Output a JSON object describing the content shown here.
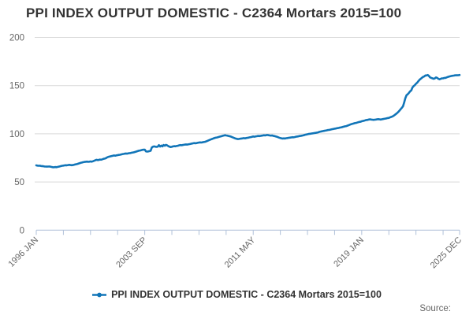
{
  "title": "PPI INDEX OUTPUT DOMESTIC - C2364 Mortars 2015=100",
  "source_label": "Source:",
  "legend": {
    "label": "PPI INDEX OUTPUT DOMESTIC - C2364 Mortars 2015=100",
    "marker_icon": "line-with-dot-icon"
  },
  "colors": {
    "line": "#1175b8",
    "grid": "#d9d9d9",
    "axis": "#b0c1d9",
    "tick_text": "#666666",
    "title_text": "#333333"
  },
  "chart_data": {
    "type": "line",
    "title": "PPI INDEX OUTPUT DOMESTIC - C2364 Mortars 2015=100",
    "xlabel": "",
    "ylabel": "",
    "x_start": "1996-01",
    "x_freq": "monthly",
    "ylim": [
      0,
      200
    ],
    "y_ticks": [
      0,
      50,
      100,
      150,
      200
    ],
    "y_tick_labels": [
      "0",
      "50",
      "100",
      "150",
      "200"
    ],
    "x_tick_months": [
      0,
      23,
      46,
      69,
      92,
      115,
      138,
      161,
      184,
      207,
      230,
      253,
      276,
      299,
      322,
      345,
      359
    ],
    "x_label_months": [
      0,
      92,
      184,
      276,
      359
    ],
    "x_tick_labels": [
      "1996 JAN",
      "2003 SEP",
      "2011 MAY",
      "2019 JAN",
      "2025 DEC"
    ],
    "grid": "horizontal",
    "legend_position": "bottom",
    "series": [
      {
        "name": "PPI INDEX OUTPUT DOMESTIC - C2364 Mortars 2015=100",
        "values": [
          67.2,
          67.0,
          66.8,
          66.9,
          66.6,
          66.5,
          66.3,
          66.1,
          66.0,
          65.9,
          66.0,
          66.1,
          65.9,
          65.6,
          65.4,
          65.3,
          65.5,
          65.4,
          65.6,
          65.9,
          66.2,
          66.5,
          66.8,
          67.0,
          67.2,
          67.4,
          67.3,
          67.6,
          67.8,
          67.6,
          67.4,
          67.6,
          67.9,
          68.2,
          68.5,
          68.8,
          69.2,
          69.6,
          70.0,
          70.3,
          70.6,
          70.8,
          71.0,
          71.2,
          70.9,
          71.1,
          71.3,
          71.1,
          71.5,
          72.0,
          72.5,
          73.0,
          72.7,
          72.9,
          73.3,
          73.1,
          73.5,
          74.0,
          74.3,
          74.7,
          75.5,
          76.0,
          76.3,
          76.6,
          77.0,
          77.2,
          77.5,
          77.3,
          77.6,
          77.9,
          78.1,
          78.3,
          78.6,
          78.9,
          79.1,
          79.4,
          79.6,
          79.4,
          79.7,
          79.9,
          80.1,
          80.4,
          80.6,
          80.9,
          81.2,
          81.6,
          82.0,
          82.4,
          82.7,
          83.0,
          83.3,
          83.5,
          83.6,
          81.8,
          81.5,
          81.7,
          82.0,
          82.4,
          85.9,
          86.6,
          86.9,
          86.6,
          86.4,
          86.7,
          88.2,
          86.8,
          87.8,
          86.9,
          88.4,
          87.6,
          88.6,
          88.0,
          87.2,
          86.6,
          86.3,
          86.5,
          86.9,
          87.2,
          87.0,
          87.3,
          87.6,
          88.0,
          88.3,
          88.1,
          88.3,
          88.6,
          88.8,
          89.0,
          88.8,
          89.1,
          89.3,
          89.6,
          89.9,
          90.1,
          90.4,
          90.2,
          90.4,
          90.7,
          90.9,
          91.1,
          90.9,
          91.2,
          91.4,
          91.7,
          92.1,
          92.6,
          93.1,
          93.6,
          94.1,
          94.6,
          95.1,
          95.5,
          95.9,
          96.2,
          96.5,
          96.8,
          97.1,
          97.5,
          97.9,
          98.2,
          98.5,
          98.3,
          98.1,
          97.8,
          97.5,
          97.1,
          96.6,
          96.1,
          95.6,
          95.1,
          94.8,
          94.5,
          94.7,
          94.9,
          95.1,
          95.3,
          95.5,
          95.3,
          95.6,
          95.8,
          96.0,
          96.3,
          96.6,
          96.9,
          97.2,
          97.0,
          97.3,
          97.5,
          97.8,
          97.6,
          97.8,
          98.0,
          98.2,
          98.5,
          98.3,
          98.6,
          98.8,
          98.5,
          98.3,
          98.1,
          98.3,
          97.9,
          97.6,
          97.3,
          97.0,
          96.5,
          96.0,
          95.6,
          95.3,
          95.1,
          95.3,
          95.1,
          95.4,
          95.6,
          95.8,
          96.0,
          96.2,
          96.5,
          96.3,
          96.6,
          96.9,
          97.1,
          97.3,
          97.6,
          97.8,
          98.0,
          98.3,
          98.6,
          99.0,
          99.3,
          99.5,
          99.8,
          100.0,
          100.2,
          100.4,
          100.6,
          100.8,
          101.0,
          101.2,
          101.5,
          102.0,
          102.3,
          102.5,
          102.8,
          103.0,
          103.3,
          103.5,
          103.8,
          104.0,
          104.2,
          104.5,
          104.8,
          105.0,
          105.3,
          105.5,
          105.8,
          106.0,
          106.3,
          106.5,
          106.8,
          107.2,
          107.5,
          107.8,
          108.0,
          108.5,
          109.0,
          109.5,
          110.0,
          110.3,
          110.6,
          111.0,
          111.3,
          111.6,
          112.0,
          112.3,
          112.5,
          113.0,
          113.3,
          113.6,
          114.0,
          114.3,
          114.5,
          114.8,
          115.0,
          114.8,
          114.6,
          114.5,
          114.6,
          114.8,
          115.0,
          115.2,
          115.0,
          114.8,
          115.0,
          115.3,
          115.5,
          115.8,
          116.0,
          116.3,
          116.5,
          117.0,
          117.5,
          118.0,
          118.6,
          119.5,
          120.5,
          121.5,
          122.6,
          124.0,
          125.5,
          127.0,
          128.5,
          132.5,
          137.0,
          140.0,
          141.0,
          142.5,
          144.0,
          145.0,
          148.0,
          149.5,
          150.5,
          152.0,
          153.0,
          154.5,
          156.0,
          157.0,
          158.0,
          159.0,
          159.5,
          160.5,
          160.5,
          161.0,
          160.0,
          158.5,
          158.0,
          157.5,
          157.0,
          157.5,
          158.5,
          158.0,
          157.0,
          156.5,
          157.0,
          157.5,
          157.5,
          158.0,
          158.0,
          158.5,
          159.0,
          159.3,
          159.6,
          160.0,
          160.2,
          160.4,
          160.6,
          160.8,
          160.7,
          160.8,
          161.0
        ]
      }
    ]
  }
}
